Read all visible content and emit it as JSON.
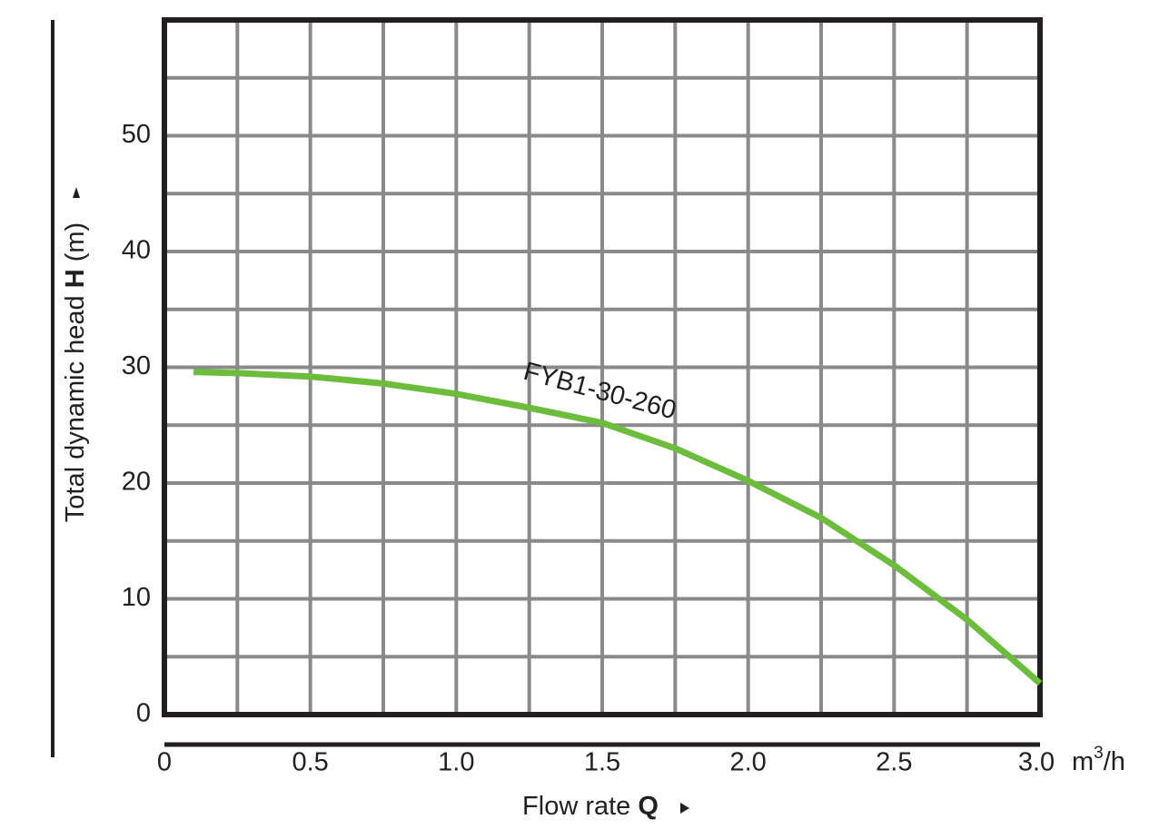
{
  "chart_data": {
    "type": "line",
    "y_label": {
      "pre": "Total dynamic head ",
      "bold": "H",
      "post": " (m)"
    },
    "x_label": {
      "pre": "Flow rate ",
      "bold": "Q"
    },
    "x_unit": "m³/h",
    "x": [
      0.1,
      0.25,
      0.5,
      0.75,
      1.0,
      1.25,
      1.5,
      1.75,
      2.0,
      2.25,
      2.5,
      2.75,
      3.0
    ],
    "series": [
      {
        "name": "FYB1-30-260",
        "color": "#6cbd3c",
        "values": [
          29.6,
          29.5,
          29.2,
          28.6,
          27.7,
          26.5,
          25.2,
          23.0,
          20.2,
          17.0,
          12.9,
          8.2,
          2.7
        ]
      }
    ],
    "xlim": [
      0,
      3.0
    ],
    "ylim": [
      0,
      60
    ],
    "xticks": [
      0,
      0.5,
      {
        "value": 1,
        "label": "1.0"
      },
      1.5,
      {
        "value": 2,
        "label": "2.0"
      },
      2.5,
      {
        "value": 3,
        "label": "3.0"
      }
    ],
    "yticks": [
      0,
      10,
      20,
      30,
      40,
      50
    ],
    "xgrid": [
      0.25,
      0.5,
      0.75,
      1,
      1.25,
      1.5,
      1.75,
      2,
      2.25,
      2.5,
      2.75
    ],
    "ygrid": [
      5,
      10,
      15,
      20,
      25,
      30,
      35,
      40,
      45,
      50,
      55
    ],
    "grid": true
  }
}
